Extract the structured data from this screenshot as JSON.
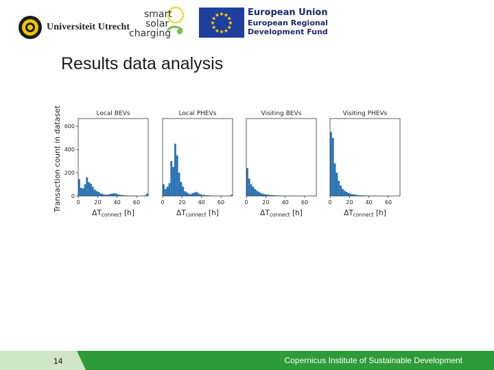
{
  "header": {
    "university": "Universiteit Utrecht",
    "ssc_words": [
      "smart",
      "solar",
      "charging"
    ],
    "eu": {
      "title": "European Union",
      "line1": "European Regional",
      "line2": "Development Fund",
      "flag_color": "#1f3f9d",
      "star_color": "#ffd700"
    }
  },
  "slide": {
    "title": "Results data analysis",
    "number": "14",
    "footer": "Copernicus Institute of Sustainable Development"
  },
  "colors": {
    "bar": "#2a74b5",
    "footer_green": "#2e9b3a",
    "footer_light": "#cfe6c8"
  },
  "chart_data": {
    "type": "bar",
    "ylabel": "Transaction count in dataset",
    "yticks": [
      0,
      200,
      400,
      600
    ],
    "ylim": [
      0,
      600
    ],
    "xticks": [
      0,
      20,
      40,
      60
    ],
    "xlim": [
      0,
      72
    ],
    "bin_width": 2,
    "panels": [
      {
        "title": "Local BEVs",
        "x_base": "ΔT",
        "x_sub": "connect",
        "x_unit": "[h]",
        "values": [
          145,
          70,
          65,
          100,
          160,
          120,
          105,
          80,
          55,
          42,
          35,
          22,
          18,
          12,
          10,
          12,
          18,
          20,
          24,
          20,
          14,
          10,
          8,
          6,
          5,
          4,
          3,
          3,
          2,
          2,
          2,
          1,
          1,
          2,
          5,
          20
        ]
      },
      {
        "title": "Local PHEVs",
        "x_base": "ΔT",
        "x_sub": "connect",
        "x_unit": "[h]",
        "values": [
          100,
          60,
          80,
          110,
          300,
          250,
          450,
          350,
          200,
          120,
          80,
          40,
          30,
          20,
          15,
          25,
          30,
          35,
          22,
          15,
          10,
          8,
          6,
          5,
          4,
          3,
          3,
          2,
          2,
          2,
          1,
          1,
          1,
          1,
          3,
          10
        ]
      },
      {
        "title": "Visiting BEVs",
        "x_base": "ΔT",
        "x_sub": "connect",
        "x_unit": "[h]",
        "values": [
          240,
          150,
          100,
          80,
          60,
          45,
          35,
          25,
          20,
          15,
          12,
          10,
          8,
          7,
          6,
          5,
          4,
          4,
          3,
          3,
          2,
          2,
          2,
          1,
          1,
          1,
          1,
          1,
          1,
          1,
          1,
          0,
          0,
          0,
          1,
          2
        ]
      },
      {
        "title": "Visiting PHEVs",
        "x_base": "ΔT",
        "x_sub": "connect",
        "x_unit": "[h]",
        "values": [
          550,
          500,
          280,
          200,
          130,
          90,
          60,
          45,
          35,
          25,
          20,
          15,
          12,
          10,
          8,
          6,
          5,
          4,
          4,
          3,
          3,
          2,
          2,
          2,
          1,
          1,
          1,
          1,
          1,
          1,
          1,
          0,
          0,
          0,
          1,
          2
        ]
      }
    ]
  }
}
